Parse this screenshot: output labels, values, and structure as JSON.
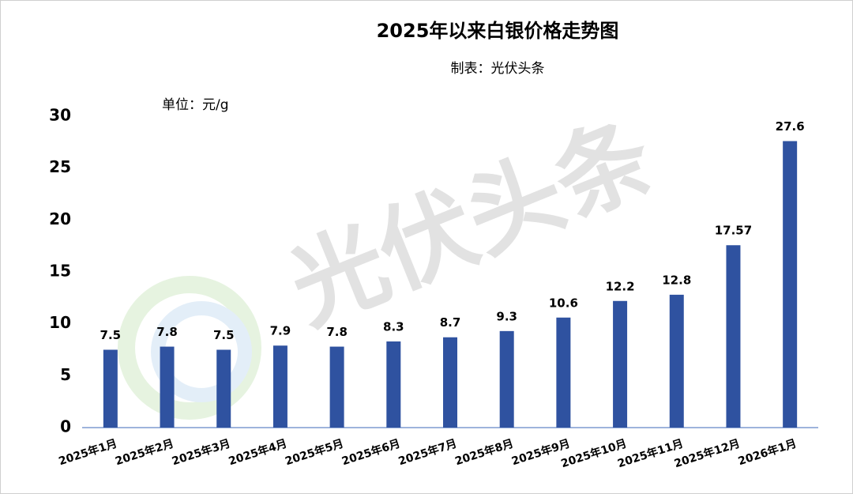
{
  "chart_data": {
    "type": "bar",
    "title": "2025年以来白银价格走势图",
    "subtitle": "制表：光伏头条",
    "unit_label": "单位：元/g",
    "watermark": "光伏头条",
    "categories": [
      "2025年1月",
      "2025年2月",
      "2025年3月",
      "2025年4月",
      "2025年5月",
      "2025年6月",
      "2025年7月",
      "2025年8月",
      "2025年9月",
      "2025年10月",
      "2025年11月",
      "2025年12月",
      "2026年1月"
    ],
    "values": [
      7.5,
      7.8,
      7.5,
      7.9,
      7.8,
      8.3,
      8.7,
      9.3,
      10.6,
      12.2,
      12.8,
      17.57,
      27.6
    ],
    "color": "#2f52a0",
    "ylim": [
      0,
      30
    ],
    "yticks": [
      0,
      5,
      10,
      15,
      20,
      25,
      30
    ],
    "grid": false
  }
}
